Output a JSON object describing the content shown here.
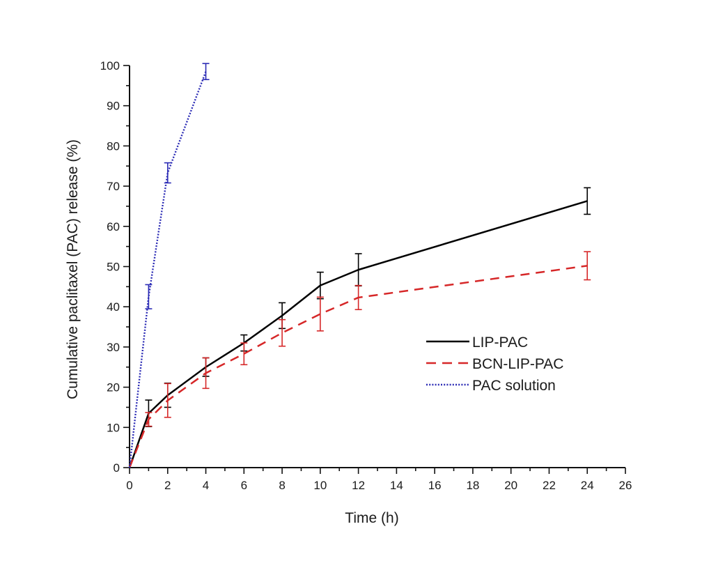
{
  "chart_data": {
    "type": "line",
    "title": "",
    "xlabel": "Time (h)",
    "ylabel": "Cumulative paclitaxel (PAC) release (%)",
    "xlim": [
      0,
      26
    ],
    "ylim": [
      0,
      100
    ],
    "xticks": [
      0,
      2,
      4,
      6,
      8,
      10,
      12,
      14,
      16,
      18,
      20,
      22,
      24,
      26
    ],
    "yticks": [
      0,
      10,
      20,
      30,
      40,
      50,
      60,
      70,
      80,
      90,
      100
    ],
    "grid": false,
    "legend_position": "center-right",
    "series": [
      {
        "name": "LIP-PAC",
        "color": "#000000",
        "style": "solid",
        "x": [
          0,
          1,
          2,
          4,
          6,
          8,
          10,
          12,
          24
        ],
        "y": [
          0,
          13.5,
          18,
          25,
          31,
          37.8,
          45.3,
          49.2,
          66.3
        ],
        "error": [
          0,
          3.3,
          3,
          2.3,
          2,
          3.2,
          3.3,
          4,
          3.3
        ]
      },
      {
        "name": "BCN-LIP-PAC",
        "color": "#d62728",
        "style": "dashed",
        "x": [
          0,
          1,
          2,
          4,
          6,
          8,
          10,
          12,
          24
        ],
        "y": [
          0,
          12,
          16.7,
          23.5,
          28.3,
          33.5,
          38.2,
          42.3,
          50.2
        ],
        "error": [
          0,
          1.7,
          4.2,
          3.8,
          2.7,
          3.3,
          4.2,
          3,
          3.5
        ]
      },
      {
        "name": "PAC solution",
        "color": "#2b2bb5",
        "style": "dotted",
        "x": [
          0,
          1,
          2,
          4
        ],
        "y": [
          0,
          42.5,
          73.3,
          98.5
        ],
        "error": [
          0,
          3,
          2.5,
          2
        ]
      }
    ]
  }
}
